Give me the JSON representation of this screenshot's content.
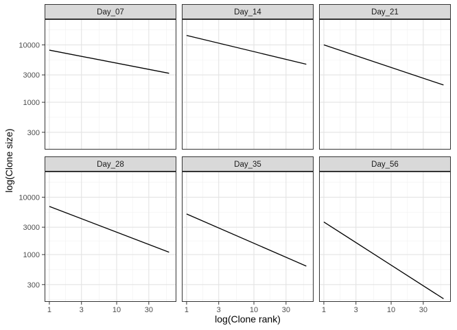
{
  "chart_data": {
    "type": "line",
    "layout": "facet-grid 2x3",
    "xlabel": "log(Clone rank)",
    "ylabel": "log(Clone size)",
    "x_scale": "log10",
    "y_scale": "log10",
    "x_ticks": [
      1,
      3,
      10,
      30
    ],
    "x_tick_labels": [
      "1",
      "3",
      "10",
      "30"
    ],
    "y_ticks": [
      300,
      1000,
      3000,
      10000
    ],
    "y_tick_labels": [
      "300",
      "1000",
      "3000",
      "10000"
    ],
    "xlim": [
      0.85,
      77
    ],
    "ylim": [
      150,
      28000
    ],
    "grid": true,
    "line_color": "#000000",
    "panels": [
      {
        "name": "Day_07",
        "x": [
          1,
          60
        ],
        "y": [
          8100,
          3200
        ]
      },
      {
        "name": "Day_14",
        "x": [
          1,
          60
        ],
        "y": [
          14600,
          4600
        ]
      },
      {
        "name": "Day_21",
        "x": [
          1,
          60
        ],
        "y": [
          10000,
          2000
        ]
      },
      {
        "name": "Day_28",
        "x": [
          1,
          60
        ],
        "y": [
          6900,
          1100
        ]
      },
      {
        "name": "Day_35",
        "x": [
          1,
          60
        ],
        "y": [
          5100,
          630
        ]
      },
      {
        "name": "Day_56",
        "x": [
          1,
          60
        ],
        "y": [
          3700,
          170
        ]
      }
    ]
  }
}
